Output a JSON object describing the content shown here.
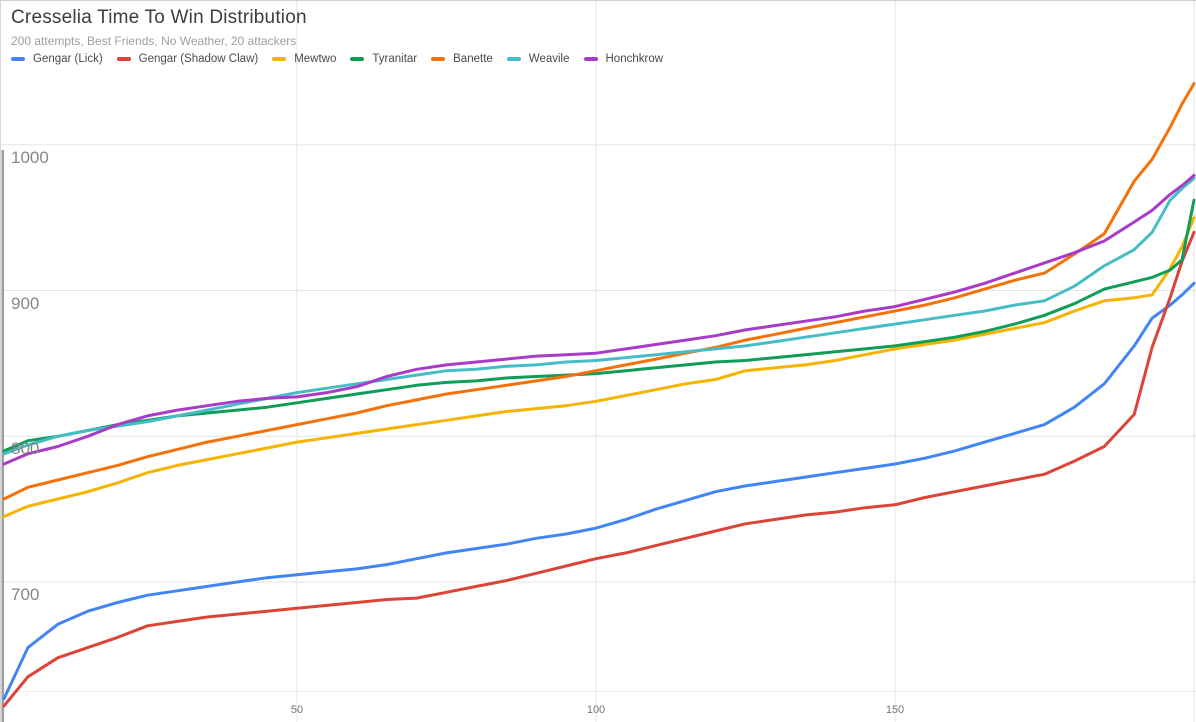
{
  "header": {
    "title": "Cresselia Time To Win Distribution",
    "subtitle": "200 attempts, Best Friends, No Weather, 20 attackers"
  },
  "chart_data": {
    "type": "line",
    "title": "Cresselia Time To Win Distribution",
    "subtitle": "200 attempts, Best Friends, No Weather, 20 attackers",
    "xlabel": "",
    "ylabel": "",
    "x_axis": {
      "range": [
        0,
        200
      ],
      "label_ticks": [
        50,
        100,
        150
      ],
      "gridlines": [
        50,
        100,
        150,
        200
      ]
    },
    "y_axis": {
      "range": [
        615,
        1050
      ],
      "ticks": [
        700,
        800,
        900,
        1000
      ]
    },
    "grid": true,
    "legend_position": "top",
    "x": [
      1,
      5,
      10,
      15,
      20,
      25,
      30,
      35,
      40,
      45,
      50,
      55,
      60,
      65,
      70,
      75,
      80,
      85,
      90,
      95,
      100,
      105,
      110,
      115,
      120,
      125,
      130,
      135,
      140,
      145,
      150,
      155,
      160,
      165,
      170,
      175,
      180,
      185,
      190,
      193,
      196,
      198,
      200
    ],
    "series": [
      {
        "name": "Gengar (Lick)",
        "color": "#4285F4",
        "values": [
          620,
          655,
          671,
          680,
          686,
          691,
          694,
          697,
          700,
          703,
          705,
          707,
          709,
          712,
          716,
          720,
          723,
          726,
          730,
          733,
          737,
          743,
          750,
          756,
          762,
          766,
          769,
          772,
          775,
          778,
          781,
          785,
          790,
          796,
          802,
          808,
          820,
          836,
          862,
          881,
          890,
          897,
          905
        ]
      },
      {
        "name": "Gengar (Shadow Claw)",
        "color": "#DB4437",
        "values": [
          615,
          635,
          648,
          655,
          662,
          670,
          673,
          676,
          678,
          680,
          682,
          684,
          686,
          688,
          689,
          693,
          697,
          701,
          706,
          711,
          716,
          720,
          725,
          730,
          735,
          740,
          743,
          746,
          748,
          751,
          753,
          758,
          762,
          766,
          770,
          774,
          783,
          793,
          815,
          861,
          895,
          920,
          940
        ]
      },
      {
        "name": "Mewtwo",
        "color": "#F4B400",
        "values": [
          745,
          752,
          757,
          762,
          768,
          775,
          780,
          784,
          788,
          792,
          796,
          799,
          802,
          805,
          808,
          811,
          814,
          817,
          819,
          821,
          824,
          828,
          832,
          836,
          839,
          845,
          847,
          849,
          852,
          856,
          860,
          863,
          866,
          870,
          874,
          878,
          886,
          893,
          895,
          897,
          915,
          930,
          950
        ]
      },
      {
        "name": "Tyranitar",
        "color": "#0F9D58",
        "values": [
          790,
          797,
          800,
          804,
          808,
          811,
          814,
          816,
          818,
          820,
          823,
          826,
          829,
          832,
          835,
          837,
          838,
          840,
          841,
          842,
          843,
          845,
          847,
          849,
          851,
          852,
          854,
          856,
          858,
          860,
          862,
          865,
          868,
          872,
          877,
          883,
          891,
          901,
          906,
          909,
          914,
          921,
          962
        ]
      },
      {
        "name": "Banette",
        "color": "#F5710A",
        "values": [
          757,
          765,
          770,
          775,
          780,
          786,
          791,
          796,
          800,
          804,
          808,
          812,
          816,
          821,
          825,
          829,
          832,
          835,
          838,
          841,
          845,
          849,
          853,
          857,
          861,
          866,
          870,
          874,
          878,
          882,
          886,
          890,
          895,
          901,
          907,
          912,
          925,
          939,
          975,
          990,
          1012,
          1028,
          1042
        ]
      },
      {
        "name": "Weavile",
        "color": "#46BDC6",
        "values": [
          788,
          794,
          800,
          804,
          807,
          810,
          814,
          818,
          822,
          826,
          830,
          833,
          836,
          839,
          842,
          845,
          846,
          848,
          849,
          851,
          852,
          854,
          856,
          858,
          860,
          862,
          865,
          868,
          871,
          874,
          877,
          880,
          883,
          886,
          890,
          893,
          903,
          917,
          928,
          940,
          962,
          970,
          977
        ]
      },
      {
        "name": "Honchkrow",
        "color": "#A83CC8",
        "values": [
          781,
          788,
          793,
          800,
          808,
          814,
          818,
          821,
          824,
          826,
          827,
          830,
          834,
          841,
          846,
          849,
          851,
          853,
          855,
          856,
          857,
          860,
          863,
          866,
          869,
          873,
          876,
          879,
          882,
          886,
          889,
          894,
          899,
          905,
          912,
          919,
          926,
          934,
          947,
          955,
          966,
          972,
          979
        ]
      }
    ]
  },
  "style_colors": {
    "gridline": "#e6e6e6",
    "baseline_bottom": "#efefef",
    "axis_line": "#9e9e9e",
    "y_tick_text": "#878787",
    "x_tick_text": "#757575"
  }
}
